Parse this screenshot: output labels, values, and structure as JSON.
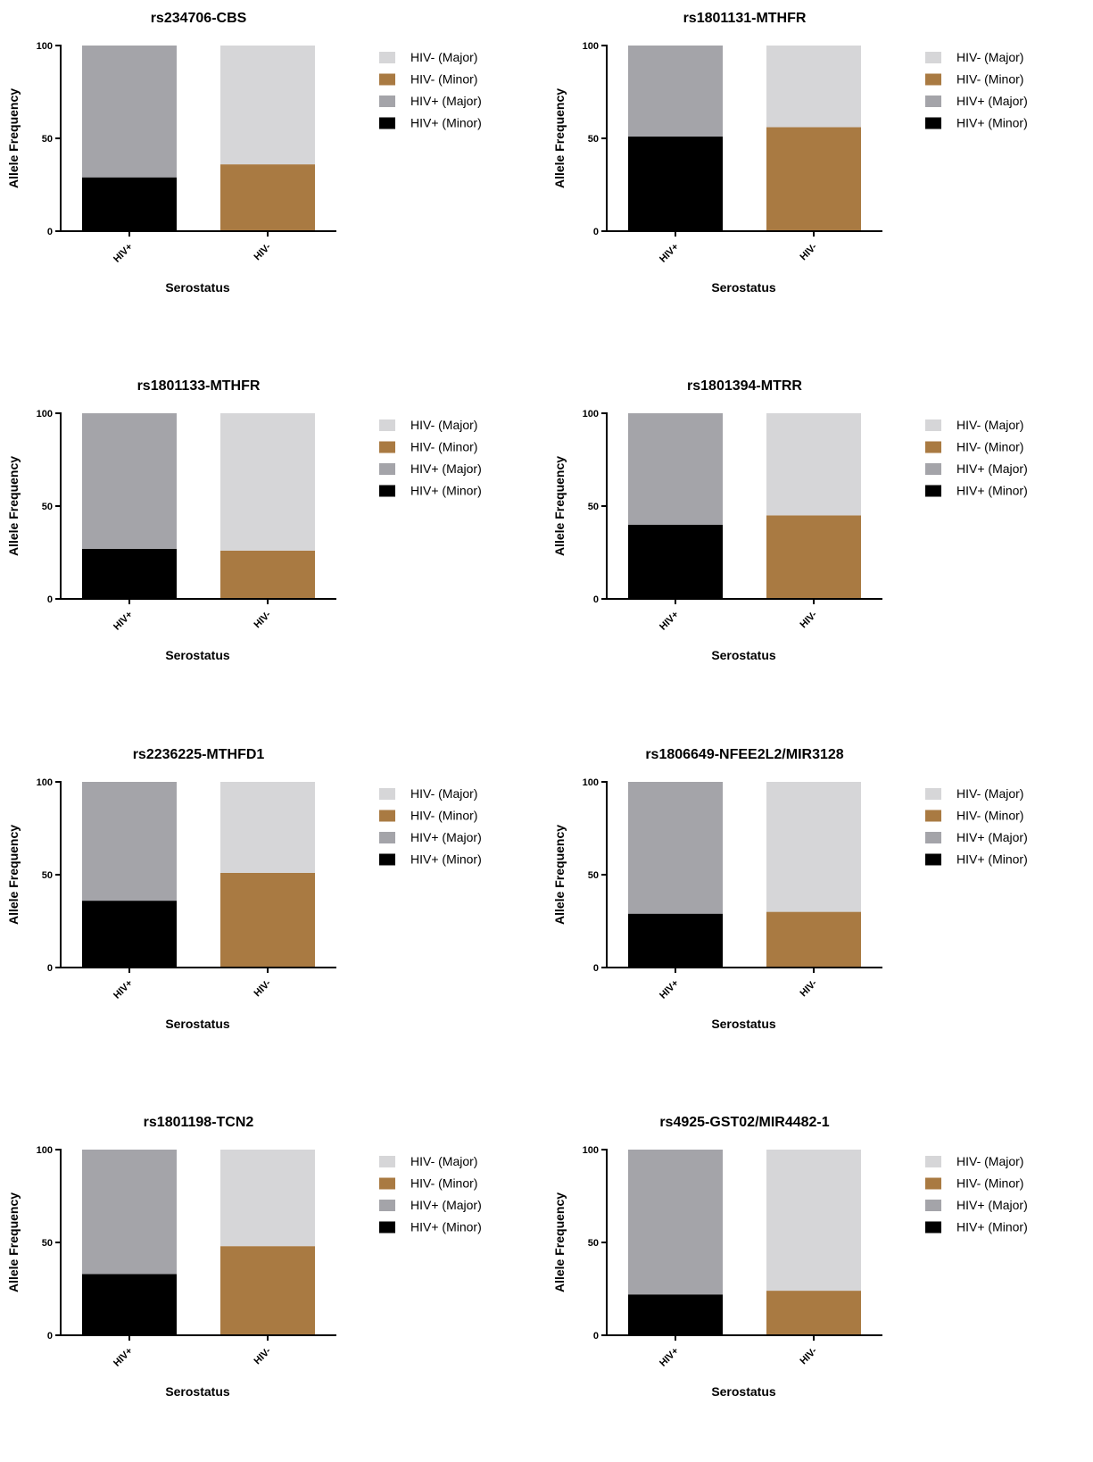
{
  "chart_data": [
    {
      "type": "bar",
      "title": "rs234706-CBS",
      "xlabel": "Serostatus",
      "ylabel": "Allele Frequency",
      "ylim": [
        0,
        100
      ],
      "yticks": [
        0,
        50,
        100
      ],
      "categories": [
        "HIV+",
        "HIV-"
      ],
      "stacked": true,
      "series": [
        {
          "name": "HIV- (Major)",
          "values": [
            0,
            64
          ]
        },
        {
          "name": "HIV- (Minor)",
          "values": [
            0,
            36
          ]
        },
        {
          "name": "HIV+ (Major)",
          "values": [
            71,
            0
          ]
        },
        {
          "name": "HIV+ (Minor)",
          "values": [
            29,
            0
          ]
        }
      ],
      "legend": "right"
    },
    {
      "type": "bar",
      "title": "rs1801131-MTHFR",
      "xlabel": "Serostatus",
      "ylabel": "Allele Frequency",
      "ylim": [
        0,
        100
      ],
      "yticks": [
        0,
        50,
        100
      ],
      "categories": [
        "HIV+",
        "HIV-"
      ],
      "stacked": true,
      "series": [
        {
          "name": "HIV- (Major)",
          "values": [
            0,
            44
          ]
        },
        {
          "name": "HIV- (Minor)",
          "values": [
            0,
            56
          ]
        },
        {
          "name": "HIV+ (Major)",
          "values": [
            49,
            0
          ]
        },
        {
          "name": "HIV+ (Minor)",
          "values": [
            51,
            0
          ]
        }
      ],
      "legend": "right"
    },
    {
      "type": "bar",
      "title": "rs1801133-MTHFR",
      "xlabel": "Serostatus",
      "ylabel": "Allele Frequency",
      "ylim": [
        0,
        100
      ],
      "yticks": [
        0,
        50,
        100
      ],
      "categories": [
        "HIV+",
        "HIV-"
      ],
      "stacked": true,
      "series": [
        {
          "name": "HIV- (Major)",
          "values": [
            0,
            74
          ]
        },
        {
          "name": "HIV- (Minor)",
          "values": [
            0,
            26
          ]
        },
        {
          "name": "HIV+ (Major)",
          "values": [
            73,
            0
          ]
        },
        {
          "name": "HIV+ (Minor)",
          "values": [
            27,
            0
          ]
        }
      ],
      "legend": "right"
    },
    {
      "type": "bar",
      "title": "rs1801394-MTRR",
      "xlabel": "Serostatus",
      "ylabel": "Allele Frequency",
      "ylim": [
        0,
        100
      ],
      "yticks": [
        0,
        50,
        100
      ],
      "categories": [
        "HIV+",
        "HIV-"
      ],
      "stacked": true,
      "series": [
        {
          "name": "HIV- (Major)",
          "values": [
            0,
            55
          ]
        },
        {
          "name": "HIV- (Minor)",
          "values": [
            0,
            45
          ]
        },
        {
          "name": "HIV+ (Major)",
          "values": [
            60,
            0
          ]
        },
        {
          "name": "HIV+ (Minor)",
          "values": [
            40,
            0
          ]
        }
      ],
      "legend": "right"
    },
    {
      "type": "bar",
      "title": "rs2236225-MTHFD1",
      "xlabel": "Serostatus",
      "ylabel": "Allele Frequency",
      "ylim": [
        0,
        100
      ],
      "yticks": [
        0,
        50,
        100
      ],
      "categories": [
        "HIV+",
        "HIV-"
      ],
      "stacked": true,
      "series": [
        {
          "name": "HIV- (Major)",
          "values": [
            0,
            49
          ]
        },
        {
          "name": "HIV- (Minor)",
          "values": [
            0,
            51
          ]
        },
        {
          "name": "HIV+ (Major)",
          "values": [
            64,
            0
          ]
        },
        {
          "name": "HIV+ (Minor)",
          "values": [
            36,
            0
          ]
        }
      ],
      "legend": "right"
    },
    {
      "type": "bar",
      "title": "rs1806649-NFEE2L2/MIR3128",
      "xlabel": "Serostatus",
      "ylabel": "Allele Frequency",
      "ylim": [
        0,
        100
      ],
      "yticks": [
        0,
        50,
        100
      ],
      "categories": [
        "HIV+",
        "HIV-"
      ],
      "stacked": true,
      "series": [
        {
          "name": "HIV- (Major)",
          "values": [
            0,
            70
          ]
        },
        {
          "name": "HIV- (Minor)",
          "values": [
            0,
            30
          ]
        },
        {
          "name": "HIV+ (Major)",
          "values": [
            71,
            0
          ]
        },
        {
          "name": "HIV+ (Minor)",
          "values": [
            29,
            0
          ]
        }
      ],
      "legend": "right"
    },
    {
      "type": "bar",
      "title": "rs1801198-TCN2",
      "xlabel": "Serostatus",
      "ylabel": "Allele Frequency",
      "ylim": [
        0,
        100
      ],
      "yticks": [
        0,
        50,
        100
      ],
      "categories": [
        "HIV+",
        "HIV-"
      ],
      "stacked": true,
      "series": [
        {
          "name": "HIV- (Major)",
          "values": [
            0,
            52
          ]
        },
        {
          "name": "HIV- (Minor)",
          "values": [
            0,
            48
          ]
        },
        {
          "name": "HIV+ (Major)",
          "values": [
            67,
            0
          ]
        },
        {
          "name": "HIV+ (Minor)",
          "values": [
            33,
            0
          ]
        }
      ],
      "legend": "right"
    },
    {
      "type": "bar",
      "title": "rs4925-GST02/MIR4482-1",
      "xlabel": "Serostatus",
      "ylabel": "Allele Frequency",
      "ylim": [
        0,
        100
      ],
      "yticks": [
        0,
        50,
        100
      ],
      "categories": [
        "HIV+",
        "HIV-"
      ],
      "stacked": true,
      "series": [
        {
          "name": "HIV- (Major)",
          "values": [
            0,
            76
          ]
        },
        {
          "name": "HIV- (Minor)",
          "values": [
            0,
            24
          ]
        },
        {
          "name": "HIV+ (Major)",
          "values": [
            78,
            0
          ]
        },
        {
          "name": "HIV+ (Minor)",
          "values": [
            22,
            0
          ]
        }
      ],
      "legend": "right"
    }
  ],
  "colors": {
    "HIV- (Major)": "#d6d6d8",
    "HIV- (Minor)": "#a97a42",
    "HIV+ (Major)": "#a4a4a9",
    "HIV+ (Minor)": "#000000",
    "axis": "#000000"
  }
}
